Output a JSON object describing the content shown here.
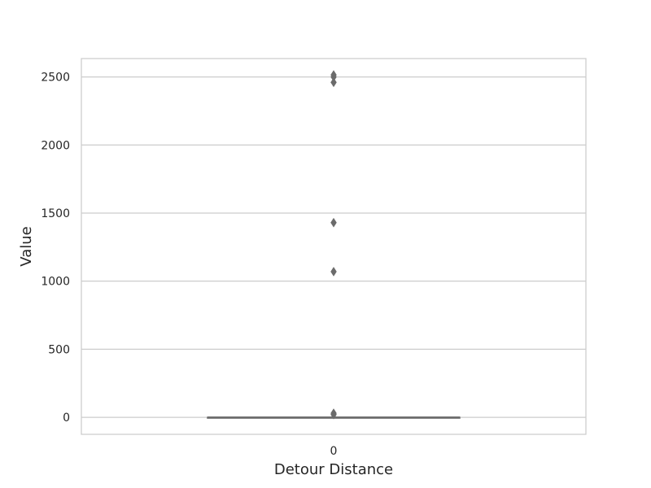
{
  "chart_data": {
    "type": "box",
    "title": "",
    "xlabel": "Detour Distance",
    "ylabel": "Value",
    "categories": [
      "0"
    ],
    "ylim": [
      -125,
      2635
    ],
    "yticks": [
      0,
      500,
      1000,
      1500,
      2000,
      2500
    ],
    "grid": true,
    "box": {
      "min": 0,
      "q1": 0,
      "median": 0,
      "q3": 0,
      "max": 0
    },
    "outliers": [
      2515,
      2500,
      2460,
      1430,
      1070,
      30,
      20
    ],
    "colors": {
      "grid": "#cccccc",
      "spine": "#cccccc",
      "box": "#6b6b6b",
      "marker": "#6b6b6b",
      "text": "#262626"
    }
  }
}
